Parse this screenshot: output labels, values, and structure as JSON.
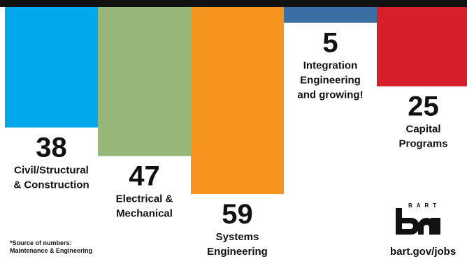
{
  "chart_data": {
    "type": "bar",
    "categories": [
      "Civil/Structural & Construction",
      "Electrical & Mechanical",
      "Systems Engineering",
      "Integration Engineering and growing!",
      "Capital Programs"
    ],
    "values": [
      38,
      47,
      59,
      5,
      25
    ],
    "colors": [
      "#00a9ec",
      "#97b778",
      "#f7941d",
      "#3a6ea5",
      "#d71f2a"
    ],
    "value_labels": [
      "38",
      "47",
      "59",
      "5",
      "25"
    ],
    "bar_labels": [
      [
        "Civil/Structural",
        "& Construction"
      ],
      [
        "Electrical &",
        "Mechanical"
      ],
      [
        "Systems",
        "Engineering"
      ],
      [
        "Integration",
        "Engineering",
        "and growing!"
      ],
      [
        "Capital",
        "Programs"
      ]
    ],
    "title": "",
    "xlabel": "",
    "ylabel": "",
    "ylim": [
      0,
      59
    ],
    "orientation": "hanging-from-top",
    "grid": false,
    "legend": "none"
  },
  "footnote": {
    "line1": "*Source of numbers:",
    "line2": "Maintenance & Engineering"
  },
  "brand": {
    "logo_text": "BART",
    "logo_mark": "ba",
    "website": "bart.gov/jobs"
  }
}
